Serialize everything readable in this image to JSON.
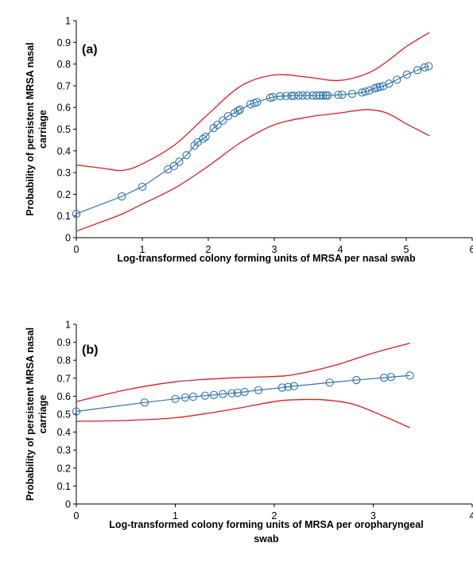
{
  "colors": {
    "fit": "#2e74b5",
    "ci": "#e41a1c",
    "axis": "#000000",
    "marker": "#2e74b5"
  },
  "chart_data": [
    {
      "type": "line",
      "panel_label": "(a)",
      "xlabel": "Log-transformed colony forming units of MRSA per nasal swab",
      "ylabel_lines": [
        "Probability of persistent MRSA nasal",
        "carriage"
      ],
      "xlim": [
        0,
        6
      ],
      "ylim": [
        0,
        1
      ],
      "x_ticks": [
        "0",
        "1",
        "2",
        "3",
        "4",
        "5",
        "6"
      ],
      "y_ticks": [
        "0",
        "0.1",
        "0.2",
        "0.3",
        "0.4",
        "0.5",
        "0.6",
        "0.7",
        "0.8",
        "0.9",
        "1"
      ],
      "grid": false,
      "series": [
        {
          "role": "fit",
          "style": "line-markers",
          "x": [
            0,
            0.69,
            1.0,
            1.39,
            1.48,
            1.56,
            1.67,
            1.79,
            1.84,
            1.92,
            1.96,
            2.08,
            2.14,
            2.22,
            2.3,
            2.4,
            2.45,
            2.48,
            2.64,
            2.7,
            2.74,
            2.94,
            2.98,
            3.09,
            3.18,
            3.26,
            3.3,
            3.37,
            3.43,
            3.5,
            3.58,
            3.64,
            3.69,
            3.74,
            3.78,
            3.81,
            3.97,
            4.03,
            4.18,
            4.33,
            4.38,
            4.44,
            4.52,
            4.56,
            4.6,
            4.65,
            4.74,
            4.86,
            5.01,
            5.17,
            5.28,
            5.34
          ],
          "y": [
            0.11,
            0.19,
            0.235,
            0.315,
            0.33,
            0.35,
            0.38,
            0.425,
            0.44,
            0.455,
            0.465,
            0.505,
            0.52,
            0.54,
            0.56,
            0.575,
            0.585,
            0.59,
            0.615,
            0.62,
            0.625,
            0.645,
            0.648,
            0.652,
            0.653,
            0.654,
            0.654,
            0.655,
            0.655,
            0.655,
            0.655,
            0.655,
            0.655,
            0.655,
            0.655,
            0.655,
            0.658,
            0.659,
            0.663,
            0.669,
            0.673,
            0.678,
            0.688,
            0.692,
            0.695,
            0.698,
            0.71,
            0.728,
            0.752,
            0.772,
            0.785,
            0.79
          ]
        },
        {
          "role": "upper_ci",
          "style": "line",
          "x": [
            0,
            0.4,
            0.7,
            1.0,
            1.5,
            2.0,
            2.5,
            3.0,
            3.5,
            4.0,
            4.5,
            5.0,
            5.35
          ],
          "y": [
            0.335,
            0.32,
            0.31,
            0.34,
            0.43,
            0.57,
            0.7,
            0.75,
            0.74,
            0.725,
            0.77,
            0.88,
            0.945
          ]
        },
        {
          "role": "lower_ci",
          "style": "line",
          "x": [
            0,
            0.4,
            0.7,
            1.0,
            1.5,
            2.0,
            2.5,
            3.0,
            3.5,
            4.0,
            4.4,
            4.7,
            5.0,
            5.35
          ],
          "y": [
            0.03,
            0.075,
            0.11,
            0.155,
            0.23,
            0.33,
            0.44,
            0.52,
            0.555,
            0.575,
            0.59,
            0.575,
            0.525,
            0.47
          ]
        }
      ]
    },
    {
      "type": "line",
      "panel_label": "(b)",
      "xlabel_lines": [
        "Log-transformed colony forming units of MRSA per oropharyngeal",
        "swab"
      ],
      "ylabel_lines": [
        "Probability of persistent MRSA nasal",
        "carriage"
      ],
      "xlim": [
        0,
        4
      ],
      "ylim": [
        0,
        1
      ],
      "x_ticks": [
        "0",
        "1",
        "2",
        "3",
        "4"
      ],
      "y_ticks": [
        "0",
        "0.1",
        "0.2",
        "0.3",
        "0.4",
        "0.5",
        "0.6",
        "0.7",
        "0.8",
        "0.9",
        "1"
      ],
      "grid": false,
      "series": [
        {
          "role": "fit",
          "style": "line-markers",
          "x": [
            0,
            0.69,
            1.0,
            1.1,
            1.18,
            1.3,
            1.39,
            1.48,
            1.57,
            1.63,
            1.7,
            1.84,
            2.08,
            2.14,
            2.2,
            2.56,
            2.83,
            3.11,
            3.18,
            3.37
          ],
          "y": [
            0.515,
            0.565,
            0.585,
            0.593,
            0.597,
            0.603,
            0.607,
            0.612,
            0.616,
            0.619,
            0.624,
            0.634,
            0.648,
            0.652,
            0.656,
            0.676,
            0.69,
            0.703,
            0.707,
            0.715
          ]
        },
        {
          "role": "upper_ci",
          "style": "line",
          "x": [
            0,
            0.5,
            1.0,
            1.5,
            2.0,
            2.2,
            2.6,
            3.0,
            3.37
          ],
          "y": [
            0.57,
            0.635,
            0.68,
            0.7,
            0.71,
            0.72,
            0.77,
            0.84,
            0.895
          ]
        },
        {
          "role": "lower_ci",
          "style": "line",
          "x": [
            0,
            0.5,
            1.0,
            1.5,
            2.0,
            2.2,
            2.5,
            2.8,
            3.1,
            3.37
          ],
          "y": [
            0.46,
            0.465,
            0.48,
            0.52,
            0.57,
            0.58,
            0.58,
            0.555,
            0.49,
            0.425
          ]
        }
      ]
    }
  ]
}
